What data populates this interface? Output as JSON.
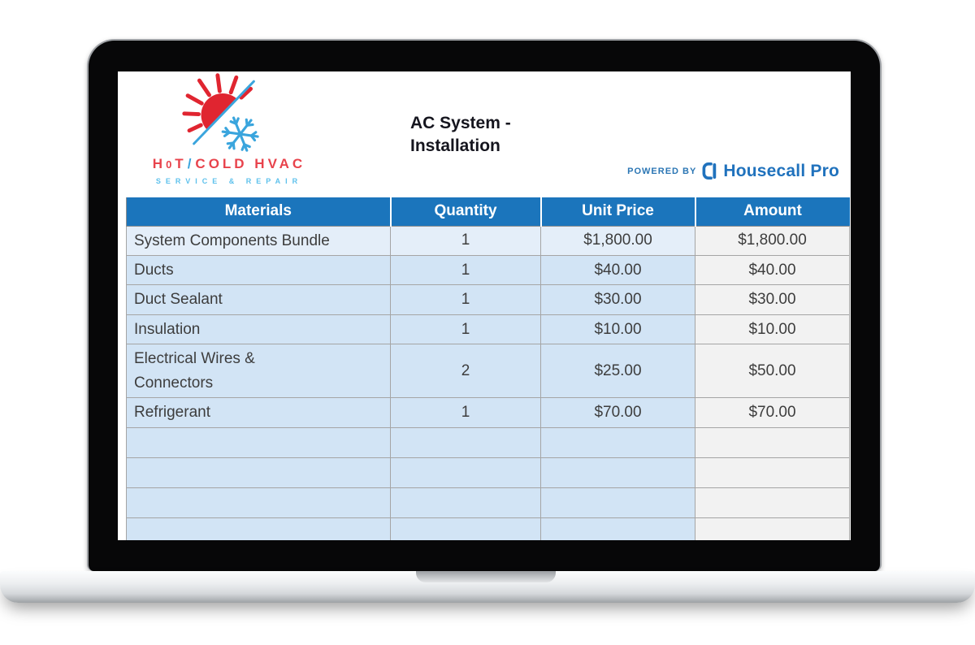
{
  "device": {
    "kind": "laptop-mockup"
  },
  "branding": {
    "logo_icon": "sun-snowflake-icon",
    "wordmark": {
      "pre": "H",
      "o": "0",
      "rest1": "T",
      "slash": "/",
      "rest2": "COLD HVAC",
      "full": "H0T/COLD HVAC"
    },
    "tagline": "SERVICE & REPAIR",
    "red": "#e02530",
    "blue": "#3aa5dd"
  },
  "document": {
    "title_line1": "AC System -",
    "title_line2": "Installation"
  },
  "powered_by": {
    "label": "POWERED BY",
    "brand": "Housecall Pro",
    "icon": "housecall-pro-icon",
    "color": "#2072bd"
  },
  "table": {
    "columns": [
      "Materials",
      "Quantity",
      "Unit Price",
      "Amount"
    ],
    "rows": [
      {
        "material": "System Components Bundle",
        "quantity": "1",
        "unit_price": "$1,800.00",
        "amount": "$1,800.00"
      },
      {
        "material": "Ducts",
        "quantity": "1",
        "unit_price": "$40.00",
        "amount": "$40.00"
      },
      {
        "material": "Duct Sealant",
        "quantity": "1",
        "unit_price": "$30.00",
        "amount": "$30.00"
      },
      {
        "material": "Insulation",
        "quantity": "1",
        "unit_price": "$10.00",
        "amount": "$10.00"
      },
      {
        "material": "Electrical Wires &\nConnectors",
        "quantity": "2",
        "unit_price": "$25.00",
        "amount": "$50.00"
      },
      {
        "material": "Refrigerant",
        "quantity": "1",
        "unit_price": "$70.00",
        "amount": "$70.00"
      }
    ],
    "empty_row_count": 4,
    "header_bg": "#1b75bc",
    "row_bg": "#d2e4f5",
    "first_row_bg": "#e4eef9",
    "amount_col_bg": "#f2f2f2"
  }
}
